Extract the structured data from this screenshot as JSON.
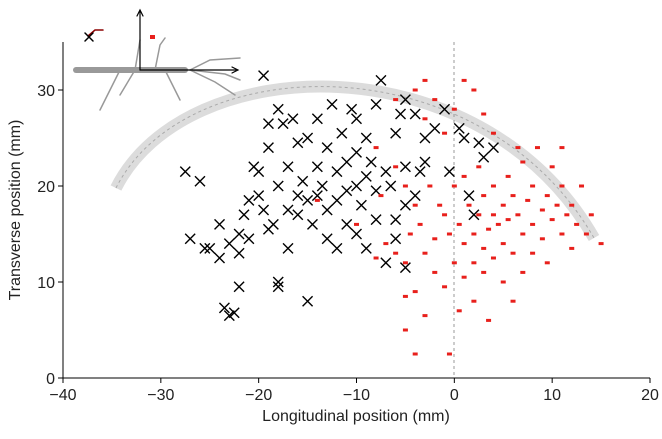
{
  "chart_data": {
    "type": "scatter",
    "xlabel": "Longitudinal position (mm)",
    "ylabel": "Transverse position (mm)",
    "xlim": [
      -40,
      20
    ],
    "ylim": [
      0,
      35
    ],
    "xticks": [
      {
        "value": -40,
        "label": "−40"
      },
      {
        "value": -30,
        "label": "−30"
      },
      {
        "value": -20,
        "label": "−20"
      },
      {
        "value": -10,
        "label": "−10"
      },
      0,
      10,
      20
    ],
    "yticks": [
      0,
      10,
      20,
      30
    ],
    "series": [
      {
        "marker": "x",
        "color": "#000000",
        "x": [
          -27.5,
          -27,
          -25.5,
          -26,
          -25,
          -24,
          -24,
          -23,
          -23.5,
          -23,
          -22.5,
          -22,
          -22,
          -21.5,
          -21,
          -21,
          -20.5,
          -20,
          -20,
          -19.5,
          -19.5,
          -19,
          -19,
          -18.5,
          -18,
          -18,
          -18,
          -18,
          -17.5,
          -17,
          -17,
          -17,
          -16.5,
          -16,
          -16,
          -15.5,
          -15,
          -15,
          -15,
          -14.5,
          -14,
          -14,
          -14,
          -13.5,
          -13,
          -13,
          -13,
          -12.5,
          -12,
          -12,
          -12,
          -11.5,
          -11,
          -11,
          -11,
          -10.5,
          -10,
          -10,
          -10,
          -10,
          -9.5,
          -9,
          -9,
          -9,
          -8.5,
          -8,
          -8,
          -8,
          -7.5,
          -7,
          -7,
          -6.5,
          -6,
          -6,
          -6,
          -5.5,
          -5,
          -5,
          -5,
          -5,
          -4,
          -4,
          -3,
          -3,
          -2,
          -1,
          -0.5,
          0.5,
          1,
          1.5,
          2,
          2.5,
          3,
          4,
          -3.5,
          -22,
          -19,
          -16
        ],
        "values": [
          21.5,
          14.5,
          13.5,
          20.5,
          13.5,
          12.5,
          16,
          14,
          7.3,
          6.5,
          6.8,
          9.5,
          15,
          17,
          14.5,
          18.5,
          22,
          19,
          21.5,
          17.5,
          31.5,
          24,
          26.5,
          16,
          10,
          9.5,
          20,
          28,
          26.5,
          13.5,
          17.5,
          22,
          27,
          19,
          24.5,
          20.5,
          18.5,
          25,
          8,
          16,
          19,
          22,
          27,
          20,
          14.5,
          17.5,
          24,
          28.5,
          18.5,
          21.5,
          13.5,
          25.5,
          19.5,
          22.5,
          16,
          28,
          20,
          23.5,
          27,
          15,
          18,
          21,
          25,
          13.5,
          22.5,
          19.5,
          28.5,
          16.5,
          31,
          21.5,
          12,
          20,
          25.5,
          16.5,
          14.5,
          27.5,
          22,
          18,
          11.5,
          29,
          19,
          27.5,
          22.5,
          25,
          26,
          28,
          21.5,
          26,
          25,
          19,
          17,
          24.5,
          23,
          24,
          21.5,
          13,
          15.5,
          17
        ]
      },
      {
        "marker": "square",
        "color": "#e8201c",
        "x": [
          -14,
          -10,
          -8,
          -7,
          -6,
          -6,
          -5,
          -5,
          -5,
          -4.5,
          -4,
          -4,
          -4,
          -3.5,
          -3,
          -3,
          -3,
          -2.5,
          -2,
          -2,
          -1.5,
          -1,
          -1,
          -0.5,
          -0.5,
          0,
          0,
          0.5,
          0.5,
          1,
          1,
          1,
          1.5,
          2,
          2,
          2,
          2.5,
          2.5,
          3,
          3,
          3,
          3.5,
          3.5,
          4,
          4,
          4,
          4.5,
          5,
          5,
          5,
          5.5,
          5.5,
          6,
          6,
          6,
          6.5,
          7,
          7,
          7,
          7.5,
          8,
          8,
          8,
          8.5,
          9,
          9,
          9.5,
          9.5,
          10,
          10,
          10.5,
          11,
          11,
          11.5,
          12,
          12,
          12.5,
          13,
          13.5,
          14,
          15,
          -1,
          -2,
          0,
          1,
          2,
          3,
          4,
          6.5,
          11,
          -6,
          -4,
          -3,
          -5,
          -7.5,
          -8
        ],
        "values": [
          18.5,
          16,
          12.5,
          14,
          13,
          22,
          8.5,
          12,
          5,
          15,
          9,
          18,
          2.5,
          16,
          13,
          27,
          6.5,
          20,
          14.5,
          11,
          18,
          17,
          9.5,
          2.5,
          15,
          20,
          12,
          16,
          7,
          21,
          14,
          10.5,
          18,
          15,
          12,
          8,
          22,
          17,
          19,
          13.5,
          11,
          15.5,
          6,
          20,
          17,
          12.5,
          16,
          18,
          14,
          10,
          21,
          16.5,
          19,
          13,
          8,
          17,
          22.5,
          15,
          11,
          18.5,
          16,
          13,
          20,
          24,
          17.5,
          14.5,
          19,
          12,
          16.5,
          22,
          18,
          15,
          20,
          17,
          13.5,
          18,
          16,
          20,
          15,
          17,
          14,
          25.5,
          29,
          28,
          31,
          30,
          27.5,
          25.5,
          24,
          24,
          29,
          30,
          31,
          20,
          19,
          24
        ]
      }
    ]
  }
}
